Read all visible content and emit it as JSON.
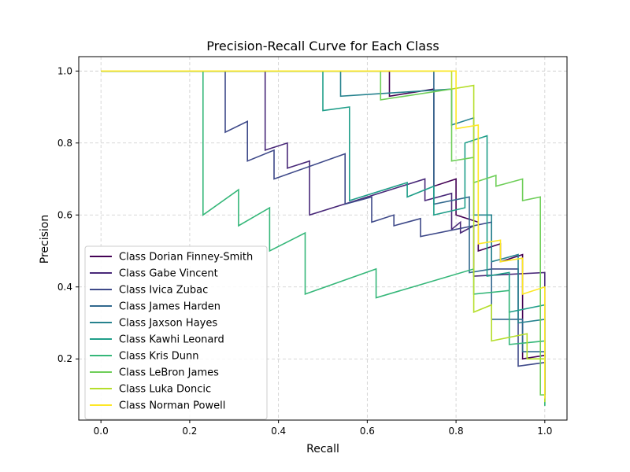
{
  "chart_data": {
    "type": "line",
    "title": "Precision-Recall Curve for Each Class",
    "xlabel": "Recall",
    "ylabel": "Precision",
    "xlim": [
      -0.05,
      1.05
    ],
    "ylim": [
      0.03,
      1.04
    ],
    "xticks": [
      0.0,
      0.2,
      0.4,
      0.6,
      0.8,
      1.0
    ],
    "yticks": [
      0.2,
      0.4,
      0.6,
      0.8,
      1.0
    ],
    "xtick_labels": [
      "0.0",
      "0.2",
      "0.4",
      "0.6",
      "0.8",
      "1.0"
    ],
    "ytick_labels": [
      "0.2",
      "0.4",
      "0.6",
      "0.8",
      "1.0"
    ],
    "grid": true,
    "grid_style": "dashed",
    "legend_position": "lower-left",
    "series": [
      {
        "name": "Class Dorian Finney-Smith",
        "color": "#440154",
        "x": [
          0.0,
          0.65,
          0.65,
          0.75,
          0.75,
          0.8,
          0.8,
          0.85,
          0.85,
          0.9,
          0.9,
          0.95,
          0.95,
          1.0,
          1.0
        ],
        "y": [
          1.0,
          1.0,
          0.93,
          0.95,
          0.68,
          0.7,
          0.6,
          0.58,
          0.5,
          0.52,
          0.47,
          0.49,
          0.2,
          0.21,
          0.09
        ]
      },
      {
        "name": "Class Gabe Vincent",
        "color": "#482878",
        "x": [
          0.0,
          0.37,
          0.37,
          0.42,
          0.42,
          0.47,
          0.47,
          0.73,
          0.73,
          0.79,
          0.79,
          0.81,
          0.81,
          0.84,
          0.84,
          1.0,
          1.0
        ],
        "y": [
          1.0,
          1.0,
          0.78,
          0.8,
          0.73,
          0.75,
          0.6,
          0.7,
          0.64,
          0.66,
          0.56,
          0.58,
          0.55,
          0.57,
          0.43,
          0.44,
          0.1
        ]
      },
      {
        "name": "Class Ivica Zubac",
        "color": "#3e4989",
        "x": [
          0.0,
          0.28,
          0.28,
          0.33,
          0.33,
          0.39,
          0.39,
          0.55,
          0.55,
          0.61,
          0.61,
          0.66,
          0.66,
          0.72,
          0.72,
          0.88,
          0.88,
          0.94,
          0.94,
          1.0,
          1.0
        ],
        "y": [
          1.0,
          1.0,
          0.83,
          0.86,
          0.75,
          0.78,
          0.7,
          0.77,
          0.63,
          0.65,
          0.58,
          0.6,
          0.57,
          0.59,
          0.54,
          0.58,
          0.45,
          0.45,
          0.18,
          0.19,
          0.1
        ]
      },
      {
        "name": "Class James Harden",
        "color": "#31688e",
        "x": [
          0.0,
          0.75,
          0.75,
          0.83,
          0.83,
          0.88,
          0.88,
          0.95,
          0.95,
          1.0,
          1.0
        ],
        "y": [
          1.0,
          1.0,
          0.63,
          0.65,
          0.44,
          0.45,
          0.31,
          0.31,
          0.22,
          0.22,
          0.1
        ]
      },
      {
        "name": "Class Jaxson Hayes",
        "color": "#26828e",
        "x": [
          0.0,
          0.54,
          0.54,
          0.79,
          0.79,
          0.84,
          0.84,
          0.88,
          0.88,
          0.94,
          0.94,
          1.0,
          1.0
        ],
        "y": [
          1.0,
          1.0,
          0.93,
          0.95,
          0.85,
          0.87,
          0.6,
          0.6,
          0.47,
          0.49,
          0.3,
          0.31,
          0.1
        ]
      },
      {
        "name": "Class Kawhi Leonard",
        "color": "#1f9e89",
        "x": [
          0.0,
          0.5,
          0.5,
          0.56,
          0.56,
          0.69,
          0.69,
          0.75,
          0.75,
          0.82,
          0.82,
          0.87,
          0.87,
          0.92,
          0.92,
          1.0,
          1.0
        ],
        "y": [
          1.0,
          1.0,
          0.89,
          0.9,
          0.64,
          0.69,
          0.65,
          0.68,
          0.6,
          0.62,
          0.8,
          0.82,
          0.43,
          0.44,
          0.33,
          0.35,
          0.07
        ]
      },
      {
        "name": "Class Kris Dunn",
        "color": "#35b779",
        "x": [
          0.0,
          0.23,
          0.23,
          0.31,
          0.31,
          0.38,
          0.38,
          0.46,
          0.46,
          0.62,
          0.62,
          0.84,
          0.84,
          0.92,
          0.92,
          1.0,
          1.0
        ],
        "y": [
          1.0,
          1.0,
          0.6,
          0.67,
          0.57,
          0.62,
          0.5,
          0.55,
          0.38,
          0.45,
          0.37,
          0.45,
          0.38,
          0.39,
          0.24,
          0.25,
          0.07
        ]
      },
      {
        "name": "Class LeBron James",
        "color": "#6ece58",
        "x": [
          0.0,
          0.63,
          0.63,
          0.79,
          0.79,
          0.84,
          0.84,
          0.89,
          0.89,
          0.95,
          0.95,
          0.99,
          0.99,
          1.0
        ],
        "y": [
          1.0,
          1.0,
          0.92,
          0.95,
          0.75,
          0.76,
          0.69,
          0.71,
          0.68,
          0.7,
          0.64,
          0.65,
          0.1,
          0.1
        ]
      },
      {
        "name": "Class Luka Doncic",
        "color": "#b5de2b",
        "x": [
          0.0,
          0.79,
          0.79,
          0.84,
          0.84,
          0.88,
          0.88,
          0.96,
          0.96,
          1.0,
          1.0
        ],
        "y": [
          1.0,
          1.0,
          0.95,
          0.96,
          0.33,
          0.35,
          0.25,
          0.27,
          0.2,
          0.2,
          0.08
        ]
      },
      {
        "name": "Class Norman Powell",
        "color": "#fde725",
        "x": [
          0.0,
          0.8,
          0.8,
          0.85,
          0.85,
          0.9,
          0.9,
          0.95,
          0.95,
          1.0,
          1.0
        ],
        "y": [
          1.0,
          1.0,
          0.84,
          0.85,
          0.52,
          0.53,
          0.47,
          0.48,
          0.38,
          0.4,
          0.09
        ]
      }
    ]
  }
}
